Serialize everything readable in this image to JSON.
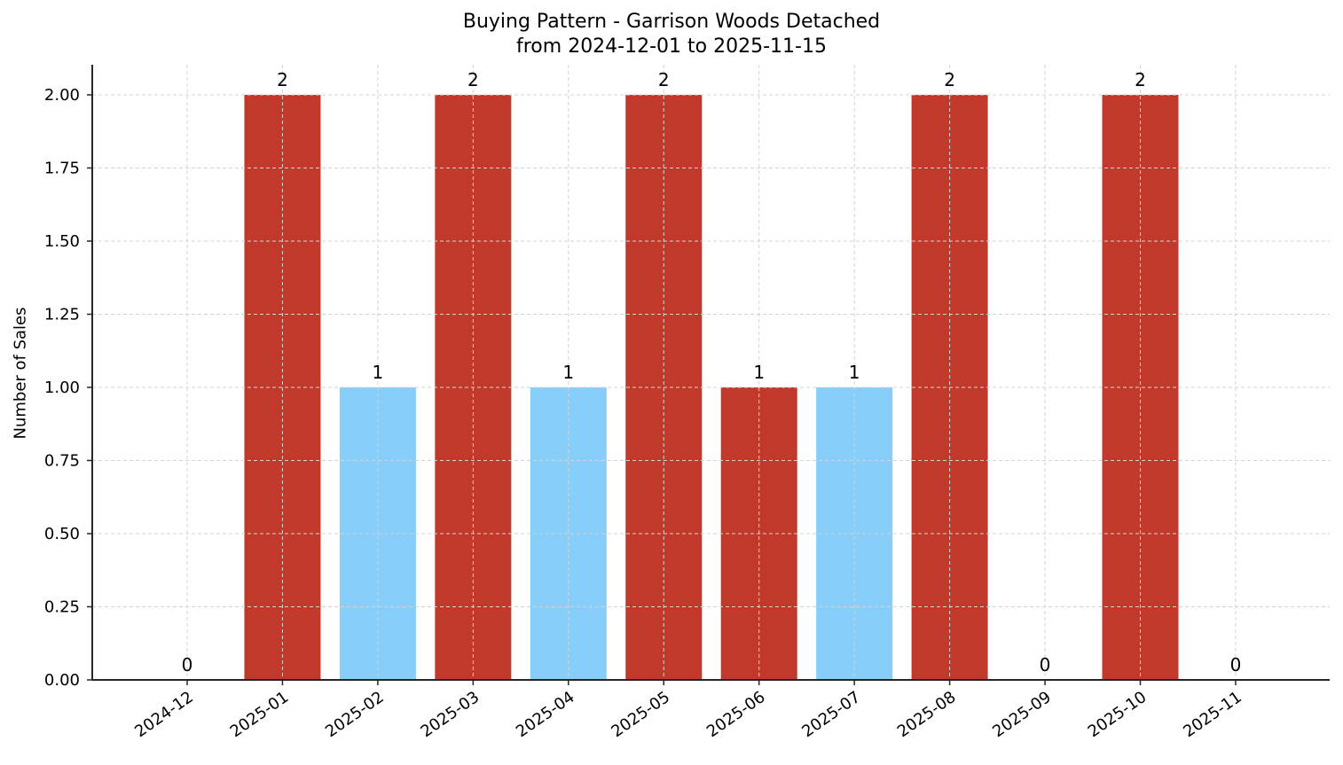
{
  "chart_data": {
    "type": "bar",
    "title": "Buying Pattern - Garrison Woods Detached",
    "subtitle": "from 2024-12-01 to 2025-11-15",
    "xlabel": "",
    "ylabel": "Number of Sales",
    "categories": [
      "2024-12",
      "2025-01",
      "2025-02",
      "2025-03",
      "2025-04",
      "2025-05",
      "2025-06",
      "2025-07",
      "2025-08",
      "2025-09",
      "2025-10",
      "2025-11"
    ],
    "values": [
      0,
      2,
      1,
      2,
      1,
      2,
      1,
      1,
      2,
      0,
      2,
      0
    ],
    "bar_colors": [
      "#c0392b",
      "#c0392b",
      "#87cefa",
      "#c0392b",
      "#87cefa",
      "#c0392b",
      "#c0392b",
      "#87cefa",
      "#c0392b",
      "#c0392b",
      "#c0392b",
      "#c0392b"
    ],
    "data_labels": [
      "0",
      "2",
      "1",
      "2",
      "1",
      "2",
      "1",
      "1",
      "2",
      "0",
      "2",
      "0"
    ],
    "ylim": [
      0,
      2.1
    ],
    "yticks": [
      "0.00",
      "0.25",
      "0.50",
      "0.75",
      "1.00",
      "1.25",
      "1.50",
      "1.75",
      "2.00"
    ],
    "grid": true,
    "legend": null
  },
  "colors": {
    "high": "#c0392b",
    "low": "#87cefa",
    "grid": "#d3d3d3",
    "axis": "#262626"
  }
}
